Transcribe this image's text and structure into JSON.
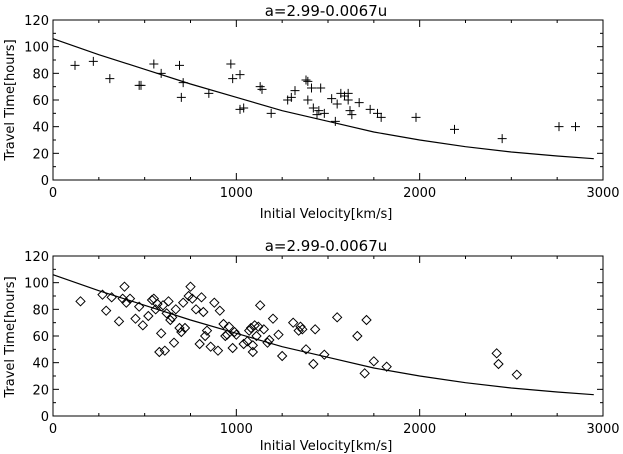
{
  "chart_data": [
    {
      "type": "scatter",
      "title": "a=2.99-0.0067u",
      "xlabel": "Initial Velocity[km/s]",
      "ylabel": "Travel Time[hours]",
      "xlim": [
        0,
        3000
      ],
      "ylim": [
        0,
        120
      ],
      "xticks": [
        0,
        1000,
        2000,
        3000
      ],
      "yticks": [
        0,
        10,
        20,
        30,
        40,
        50,
        60,
        70,
        80,
        90,
        100,
        110,
        120
      ],
      "xtick_labels": [
        "0",
        "1000",
        "2000",
        "3000"
      ],
      "ytick_labels": [
        "0",
        "20",
        "40",
        "60",
        "80",
        "100",
        "120"
      ],
      "marker": "plus",
      "grid": false,
      "series": [
        {
          "points": [
            [
              120,
              86
            ],
            [
              220,
              89
            ],
            [
              310,
              76
            ],
            [
              470,
              71
            ],
            [
              480,
              71
            ],
            [
              550,
              87
            ],
            [
              590,
              80
            ],
            [
              690,
              86
            ],
            [
              700,
              62
            ],
            [
              710,
              73
            ],
            [
              850,
              65
            ],
            [
              970,
              87
            ],
            [
              980,
              76
            ],
            [
              1020,
              79
            ],
            [
              1020,
              53
            ],
            [
              1040,
              54
            ],
            [
              1130,
              70
            ],
            [
              1140,
              68
            ],
            [
              1190,
              50
            ],
            [
              1280,
              60
            ],
            [
              1300,
              62
            ],
            [
              1320,
              67
            ],
            [
              1380,
              75
            ],
            [
              1390,
              74
            ],
            [
              1390,
              60
            ],
            [
              1410,
              69
            ],
            [
              1420,
              54
            ],
            [
              1440,
              49
            ],
            [
              1450,
              52
            ],
            [
              1460,
              69
            ],
            [
              1480,
              50
            ],
            [
              1520,
              61
            ],
            [
              1540,
              44
            ],
            [
              1550,
              57
            ],
            [
              1570,
              65
            ],
            [
              1590,
              63
            ],
            [
              1610,
              65
            ],
            [
              1610,
              60
            ],
            [
              1620,
              52
            ],
            [
              1630,
              49
            ],
            [
              1670,
              58
            ],
            [
              1730,
              53
            ],
            [
              1770,
              50
            ],
            [
              1790,
              47
            ],
            [
              1980,
              47
            ],
            [
              2190,
              38
            ],
            [
              2450,
              31
            ],
            [
              2760,
              40
            ],
            [
              2850,
              40
            ]
          ]
        }
      ],
      "fit_curve": {
        "x": [
          0,
          250,
          500,
          750,
          1000,
          1250,
          1500,
          1750,
          2000,
          2250,
          2500,
          2750,
          2950
        ],
        "y": [
          106,
          94,
          83,
          72,
          62,
          52,
          44,
          36,
          30,
          25,
          21,
          18,
          16
        ]
      }
    },
    {
      "type": "scatter",
      "title": "a=2.99-0.0067u",
      "xlabel": "Initial Velocity[km/s]",
      "ylabel": "Travel Time[hours]",
      "xlim": [
        0,
        3000
      ],
      "ylim": [
        0,
        120
      ],
      "xticks": [
        0,
        1000,
        2000,
        3000
      ],
      "yticks": [
        0,
        10,
        20,
        30,
        40,
        50,
        60,
        70,
        80,
        90,
        100,
        110,
        120
      ],
      "xtick_labels": [
        "0",
        "1000",
        "2000",
        "3000"
      ],
      "ytick_labels": [
        "0",
        "20",
        "40",
        "60",
        "80",
        "100",
        "120"
      ],
      "marker": "diamond",
      "grid": false,
      "series": [
        {
          "points": [
            [
              150,
              86
            ],
            [
              270,
              91
            ],
            [
              290,
              79
            ],
            [
              320,
              89
            ],
            [
              360,
              71
            ],
            [
              380,
              88
            ],
            [
              390,
              97
            ],
            [
              400,
              85
            ],
            [
              420,
              88
            ],
            [
              450,
              73
            ],
            [
              470,
              82
            ],
            [
              490,
              68
            ],
            [
              520,
              75
            ],
            [
              540,
              87
            ],
            [
              550,
              88
            ],
            [
              560,
              80
            ],
            [
              570,
              84
            ],
            [
              580,
              48
            ],
            [
              590,
              62
            ],
            [
              600,
              83
            ],
            [
              610,
              49
            ],
            [
              620,
              77
            ],
            [
              630,
              86
            ],
            [
              640,
              72
            ],
            [
              650,
              74
            ],
            [
              660,
              55
            ],
            [
              670,
              80
            ],
            [
              690,
              66
            ],
            [
              700,
              63
            ],
            [
              710,
              85
            ],
            [
              720,
              66
            ],
            [
              740,
              90
            ],
            [
              750,
              97
            ],
            [
              760,
              88
            ],
            [
              780,
              80
            ],
            [
              800,
              54
            ],
            [
              810,
              89
            ],
            [
              820,
              78
            ],
            [
              830,
              60
            ],
            [
              840,
              64
            ],
            [
              860,
              52
            ],
            [
              880,
              85
            ],
            [
              900,
              49
            ],
            [
              910,
              79
            ],
            [
              930,
              69
            ],
            [
              940,
              60
            ],
            [
              950,
              61
            ],
            [
              960,
              67
            ],
            [
              980,
              51
            ],
            [
              990,
              63
            ],
            [
              1000,
              61
            ],
            [
              1040,
              54
            ],
            [
              1060,
              56
            ],
            [
              1070,
              64
            ],
            [
              1080,
              66
            ],
            [
              1090,
              53
            ],
            [
              1090,
              48
            ],
            [
              1100,
              68
            ],
            [
              1110,
              60
            ],
            [
              1120,
              67
            ],
            [
              1130,
              83
            ],
            [
              1150,
              65
            ],
            [
              1170,
              55
            ],
            [
              1180,
              57
            ],
            [
              1200,
              73
            ],
            [
              1230,
              61
            ],
            [
              1250,
              45
            ],
            [
              1310,
              70
            ],
            [
              1340,
              64
            ],
            [
              1350,
              67
            ],
            [
              1360,
              65
            ],
            [
              1380,
              50
            ],
            [
              1420,
              39
            ],
            [
              1430,
              65
            ],
            [
              1480,
              46
            ],
            [
              1550,
              74
            ],
            [
              1660,
              60
            ],
            [
              1700,
              32
            ],
            [
              1710,
              72
            ],
            [
              1750,
              41
            ],
            [
              1820,
              37
            ],
            [
              2420,
              47
            ],
            [
              2430,
              39
            ],
            [
              2530,
              31
            ]
          ]
        }
      ],
      "fit_curve": {
        "x": [
          0,
          250,
          500,
          750,
          1000,
          1250,
          1500,
          1750,
          2000,
          2250,
          2500,
          2750,
          2950
        ],
        "y": [
          106,
          94,
          83,
          72,
          62,
          52,
          44,
          36,
          30,
          25,
          21,
          18,
          16
        ]
      }
    }
  ]
}
